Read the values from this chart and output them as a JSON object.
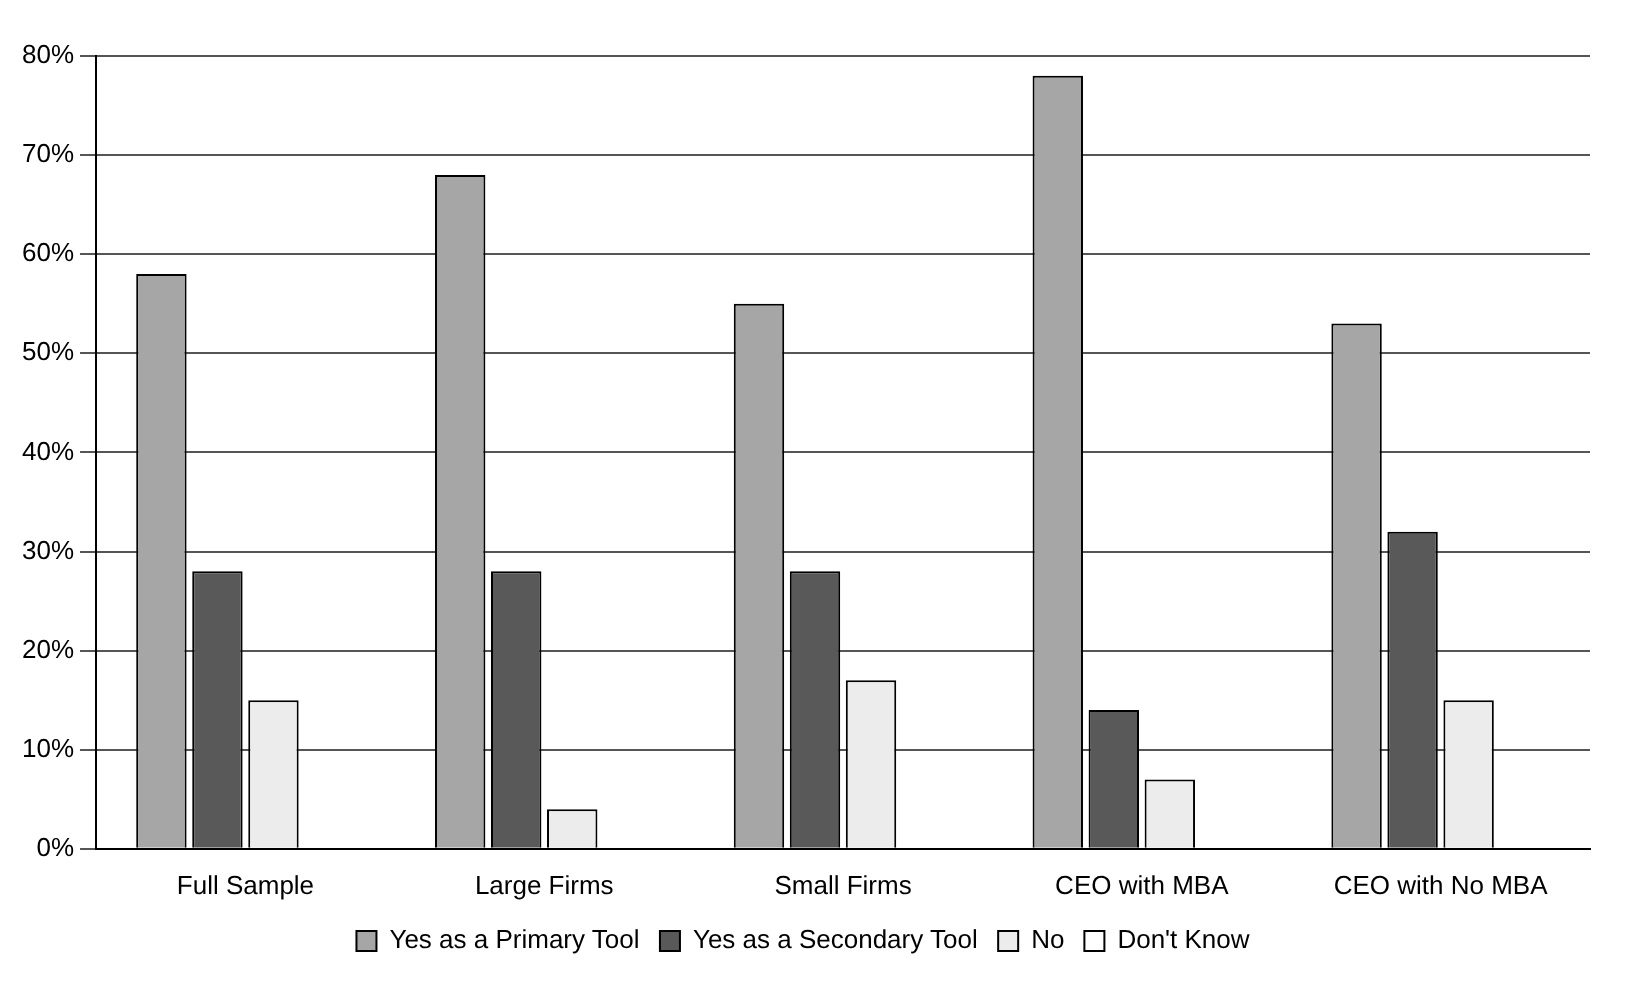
{
  "chart_data": {
    "type": "bar",
    "categories": [
      "Full Sample",
      "Large Firms",
      "Small Firms",
      "CEO with MBA",
      "CEO with No MBA"
    ],
    "series": [
      {
        "name": "Yes as a Primary Tool",
        "color": "#a6a6a6",
        "values": [
          58,
          68,
          55,
          78,
          53
        ]
      },
      {
        "name": "Yes as a Secondary Tool",
        "color": "#595959",
        "values": [
          28,
          28,
          28,
          14,
          32
        ]
      },
      {
        "name": "No",
        "color": "#ececec",
        "values": [
          15,
          4,
          17,
          7,
          15
        ]
      },
      {
        "name": "Don't Know",
        "color": "#ffffff",
        "values": [
          0,
          0,
          0,
          0,
          0
        ]
      }
    ],
    "ylim": [
      0,
      80
    ],
    "yticks": [
      {
        "value": 0,
        "label": "0%"
      },
      {
        "value": 10,
        "label": "10%"
      },
      {
        "value": 20,
        "label": "20%"
      },
      {
        "value": 30,
        "label": "30%"
      },
      {
        "value": 40,
        "label": "40%"
      },
      {
        "value": 50,
        "label": "50%"
      },
      {
        "value": 60,
        "label": "60%"
      },
      {
        "value": 70,
        "label": "70%"
      },
      {
        "value": 80,
        "label": "80%"
      }
    ],
    "grid": "y",
    "legend": "bottom"
  }
}
